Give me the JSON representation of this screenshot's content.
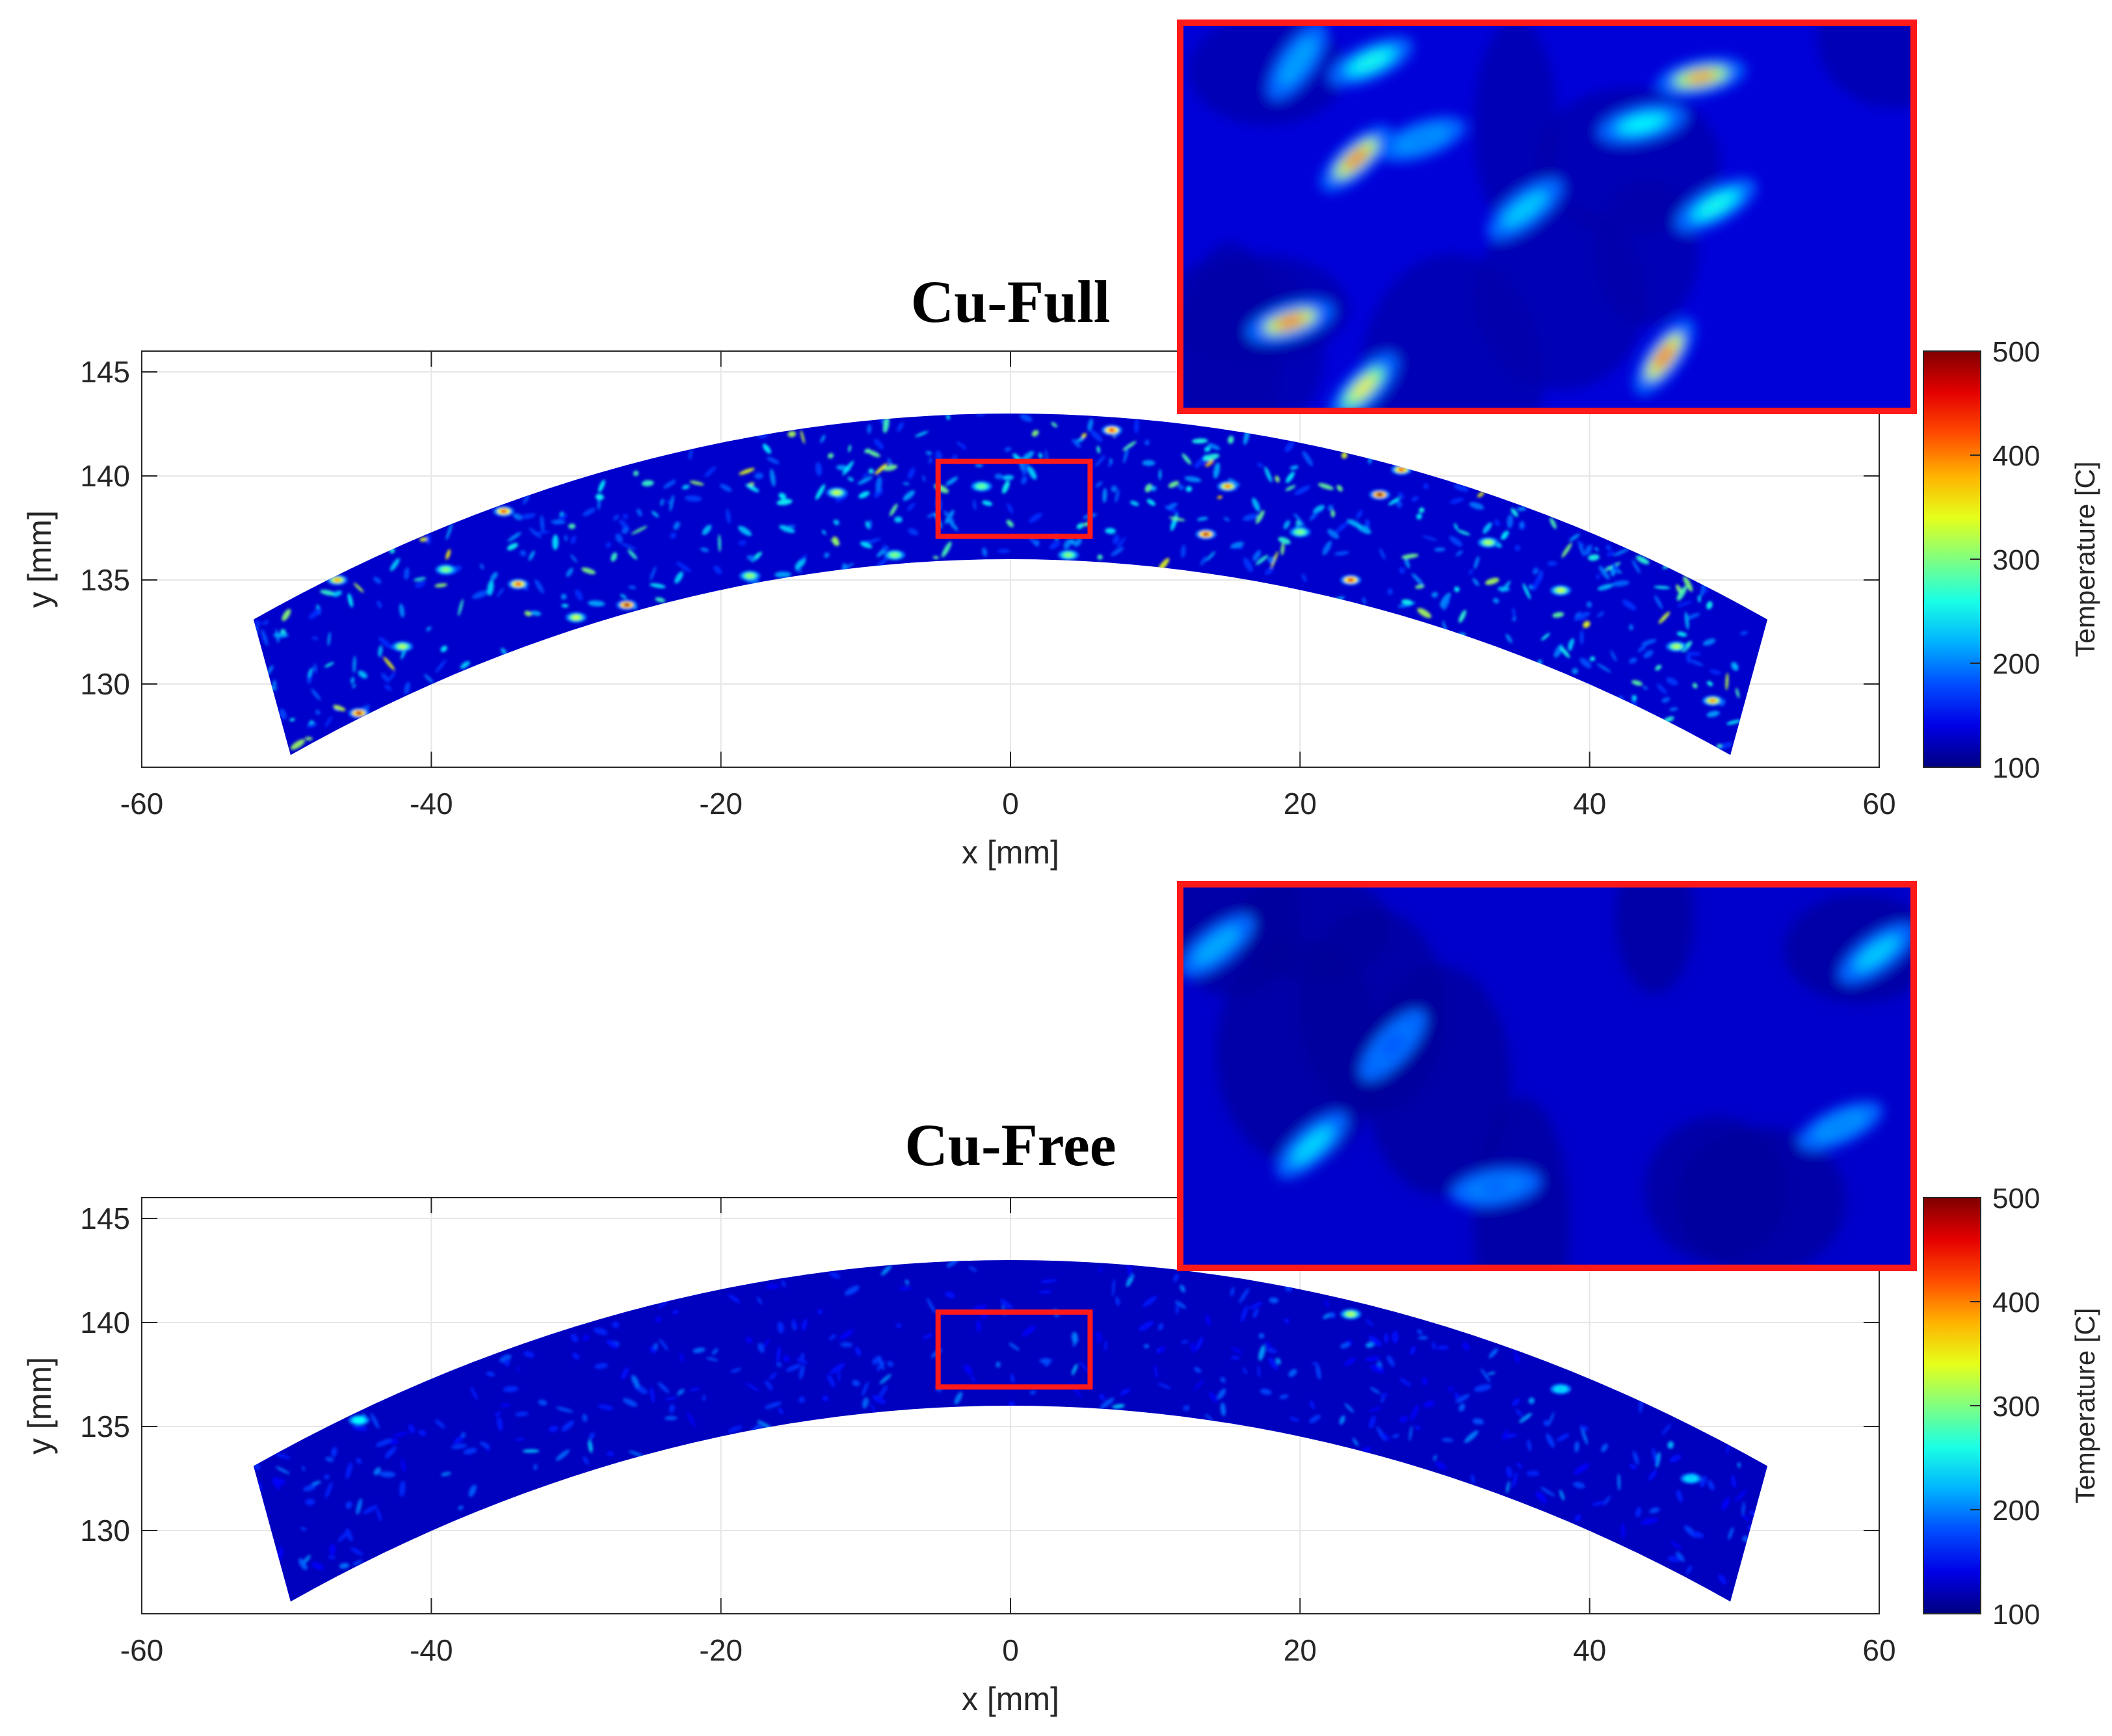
{
  "chart_data": [
    {
      "type": "heatmap",
      "title": "Cu-Full",
      "xlabel": "x [mm]",
      "ylabel": "y [mm]",
      "xlim": [
        -60,
        60
      ],
      "ylim": [
        126,
        146
      ],
      "xticks": [
        -60,
        -40,
        -20,
        0,
        20,
        40,
        60
      ],
      "yticks": [
        130,
        135,
        140,
        145
      ],
      "grid": true,
      "colorbar": {
        "label": "Temperature [C]",
        "range": [
          100,
          500
        ],
        "ticks": [
          100,
          200,
          300,
          400,
          500
        ]
      },
      "field": {
        "shape": "annular sector",
        "outer_radius_mm": 143,
        "inner_radius_mm": 136,
        "span_x_mm": [
          -51,
          51
        ],
        "background_temperature_C": 130,
        "hotspots": [
          {
            "x": -45,
            "y": 128.6,
            "t": 470
          },
          {
            "x": -46.5,
            "y": 135,
            "t": 380
          },
          {
            "x": -35,
            "y": 138.3,
            "t": 430
          },
          {
            "x": -34,
            "y": 134.8,
            "t": 420
          },
          {
            "x": -26.5,
            "y": 133.8,
            "t": 480
          },
          {
            "x": -30,
            "y": 133.2,
            "t": 330
          },
          {
            "x": -39,
            "y": 135.5,
            "t": 300
          },
          {
            "x": -42,
            "y": 131.8,
            "t": 320
          },
          {
            "x": -18,
            "y": 135.2,
            "t": 310
          },
          {
            "x": -12,
            "y": 139.2,
            "t": 330
          },
          {
            "x": -8,
            "y": 136.2,
            "t": 300
          },
          {
            "x": 7,
            "y": 142.2,
            "t": 450
          },
          {
            "x": 13.5,
            "y": 137.2,
            "t": 470
          },
          {
            "x": 15,
            "y": 139.5,
            "t": 400
          },
          {
            "x": 25.5,
            "y": 139.1,
            "t": 490
          },
          {
            "x": 23.5,
            "y": 135,
            "t": 460
          },
          {
            "x": 27,
            "y": 140.3,
            "t": 420
          },
          {
            "x": 38,
            "y": 134.5,
            "t": 330
          },
          {
            "x": 46,
            "y": 131.8,
            "t": 320
          },
          {
            "x": 48.5,
            "y": 129.2,
            "t": 390
          },
          {
            "x": 33,
            "y": 136.8,
            "t": 320
          },
          {
            "x": 4,
            "y": 136.2,
            "t": 300
          },
          {
            "x": -2,
            "y": 139.5,
            "t": 290
          },
          {
            "x": 20,
            "y": 137.3,
            "t": 300
          }
        ],
        "hotspot_density": "high"
      },
      "zoom_region": {
        "x": [
          -5,
          5.5
        ],
        "y": [
          137.1,
          140.7
        ]
      },
      "inset_hotspots": [
        {
          "u": 0.24,
          "v": 0.35,
          "t": 420
        },
        {
          "u": 0.15,
          "v": 0.77,
          "t": 430
        },
        {
          "u": 0.66,
          "v": 0.86,
          "t": 440
        },
        {
          "u": 0.71,
          "v": 0.14,
          "t": 400
        },
        {
          "u": 0.25,
          "v": 0.94,
          "t": 360
        },
        {
          "u": 0.26,
          "v": 0.1,
          "t": 260
        },
        {
          "u": 0.47,
          "v": 0.48,
          "t": 230
        },
        {
          "u": 0.73,
          "v": 0.47,
          "t": 260
        },
        {
          "u": 0.63,
          "v": 0.26,
          "t": 250
        },
        {
          "u": 0.16,
          "v": 0.1,
          "t": 210
        },
        {
          "u": 0.33,
          "v": 0.3,
          "t": 200
        }
      ]
    },
    {
      "type": "heatmap",
      "title": "Cu-Free",
      "xlabel": "x [mm]",
      "ylabel": "y [mm]",
      "xlim": [
        -60,
        60
      ],
      "ylim": [
        126,
        146
      ],
      "xticks": [
        -60,
        -40,
        -20,
        0,
        20,
        40,
        60
      ],
      "yticks": [
        130,
        135,
        140,
        145
      ],
      "grid": true,
      "colorbar": {
        "label": "Temperature [C]",
        "range": [
          100,
          500
        ],
        "ticks": [
          100,
          200,
          300,
          400,
          500
        ]
      },
      "field": {
        "shape": "annular sector",
        "outer_radius_mm": 143,
        "inner_radius_mm": 136,
        "span_x_mm": [
          -51,
          51
        ],
        "background_temperature_C": 125,
        "hotspots": [
          {
            "x": 23.5,
            "y": 140.4,
            "t": 320
          },
          {
            "x": -45,
            "y": 135.3,
            "t": 250
          },
          {
            "x": 38,
            "y": 136.8,
            "t": 230
          },
          {
            "x": 47,
            "y": 132.5,
            "t": 230
          }
        ],
        "hotspot_density": "low"
      },
      "zoom_region": {
        "x": [
          -5,
          5.5
        ],
        "y": [
          136.9,
          140.5
        ]
      },
      "inset_hotspots": [
        {
          "u": 0.18,
          "v": 0.68,
          "t": 235
        },
        {
          "u": 0.95,
          "v": 0.18,
          "t": 230
        },
        {
          "u": 0.05,
          "v": 0.16,
          "t": 215
        },
        {
          "u": 0.9,
          "v": 0.63,
          "t": 200
        },
        {
          "u": 0.43,
          "v": 0.79,
          "t": 185
        },
        {
          "u": 0.29,
          "v": 0.42,
          "t": 175
        }
      ]
    }
  ]
}
